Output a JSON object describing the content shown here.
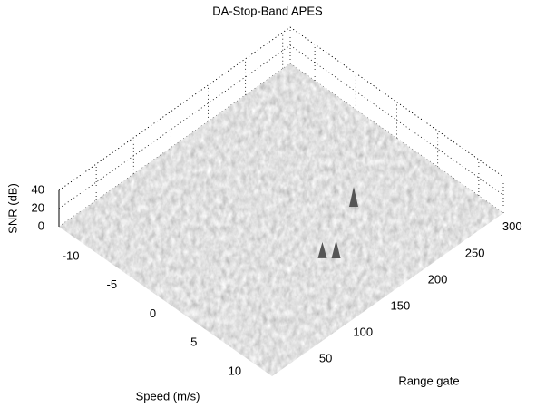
{
  "chart_data": {
    "type": "surface3d",
    "title": "DA-Stop-Band APES",
    "x_label": "Speed (m/s)",
    "y_label": "Range gate",
    "z_label": "SNR (dB)",
    "xlim": [
      -13,
      13
    ],
    "xticks": [
      -10,
      -5,
      0,
      5,
      10
    ],
    "ylim": [
      0,
      310
    ],
    "yticks": [
      50,
      100,
      150,
      200,
      250,
      300
    ],
    "zlim": [
      0,
      40
    ],
    "zticks": [
      0,
      20,
      40
    ],
    "grid": true,
    "color": "#555555",
    "peaks": {
      "x": [
        3.3,
        5.85,
        6.7
      ],
      "y": [
        216,
        146,
        155
      ],
      "z": [
        22,
        18,
        20
      ]
    }
  }
}
